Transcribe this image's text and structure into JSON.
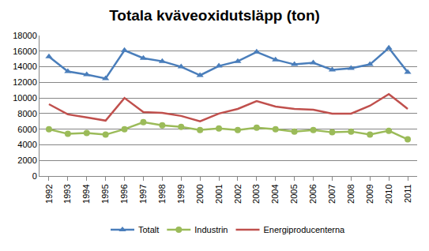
{
  "chart_data": {
    "type": "line",
    "title": "Totala kväveoxidutsläpp (ton)",
    "categories": [
      "1992",
      "1993",
      "1994",
      "1995",
      "1996",
      "1997",
      "1998",
      "1999",
      "2000",
      "2001",
      "2002",
      "2003",
      "2004",
      "2005",
      "2006",
      "2007",
      "2008",
      "2009",
      "2010",
      "2011"
    ],
    "series": [
      {
        "name": "Totalt",
        "color": "#4a7ebb",
        "marker": "triangle",
        "values": [
          15300,
          13400,
          13000,
          12500,
          16100,
          15100,
          14700,
          14000,
          12900,
          14100,
          14700,
          15900,
          14900,
          14300,
          14500,
          13600,
          13800,
          14300,
          16400,
          13300
        ]
      },
      {
        "name": "Industrin",
        "color": "#9bbb59",
        "marker": "circle",
        "values": [
          6000,
          5400,
          5500,
          5300,
          6000,
          6900,
          6500,
          6300,
          5900,
          6100,
          5900,
          6200,
          6000,
          5700,
          5900,
          5600,
          5700,
          5300,
          5800,
          4700
        ]
      },
      {
        "name": "Energiproducenterna",
        "color": "#c0504d",
        "marker": "none",
        "values": [
          9200,
          7900,
          7500,
          7100,
          10000,
          8200,
          8100,
          7700,
          7000,
          8000,
          8600,
          9600,
          8900,
          8600,
          8500,
          8000,
          8000,
          9000,
          10500,
          8600
        ]
      }
    ],
    "ylim": [
      0,
      18000
    ],
    "yticks": [
      0,
      2000,
      4000,
      6000,
      8000,
      10000,
      12000,
      14000,
      16000,
      18000
    ],
    "grid": true,
    "legend": "bottom"
  }
}
